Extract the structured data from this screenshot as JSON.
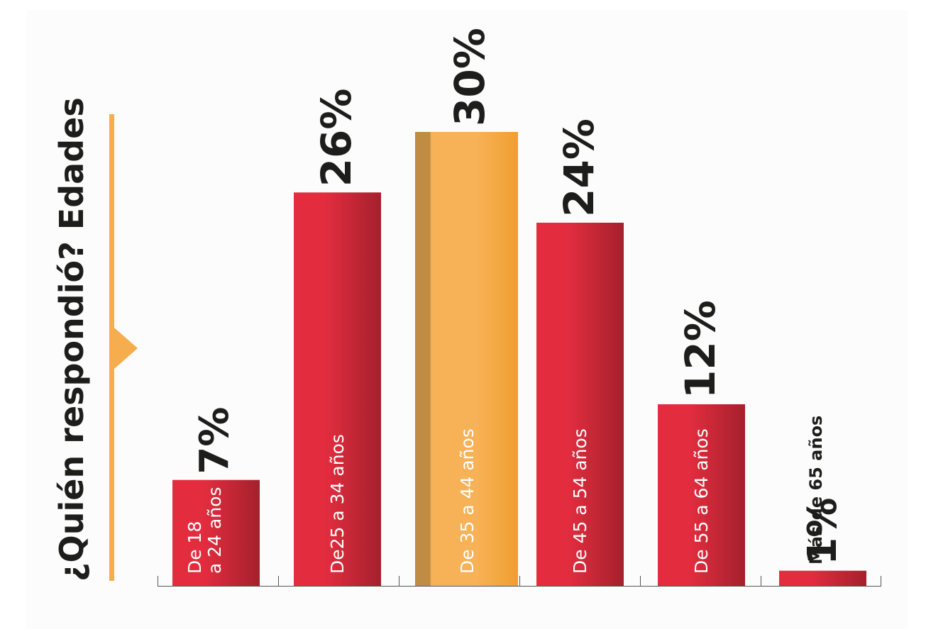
{
  "chart_data": {
    "type": "bar",
    "title": "¿Quién respondió? Edades",
    "categories": [
      "De 18 a 24 años",
      "De25 a 34 años",
      "De 35 a 44 años",
      "De 45 a 54 años",
      "De 55 a 64 años",
      "Más de 65 años"
    ],
    "category_lines": [
      [
        "De 18",
        "a 24 años"
      ],
      [
        "De25 a 34 años"
      ],
      [
        "De 35 a 44 años"
      ],
      [
        "De 45 a 54 años"
      ],
      [
        "De 55 a 64 años"
      ],
      [
        "Más de 65 años"
      ]
    ],
    "values": [
      7,
      26,
      30,
      24,
      12,
      1
    ],
    "value_labels": [
      "7%",
      "26%",
      "30%",
      "24%",
      "12%",
      "1%"
    ],
    "highlight_index": 2,
    "ylim": [
      0,
      30
    ],
    "grid": false,
    "legend": "none",
    "colors": {
      "bar_light": "#e32d3f",
      "bar_dark": "#a5202c",
      "highlight_left": "#c08b42",
      "highlight_mid": "#f7b156",
      "highlight_right": "#f09f2f",
      "accent": "#f5ad4e",
      "value_text": "#1d1d1b",
      "label_text": "#ffffff",
      "label_text_dark": "#1d1d1b",
      "axis": "#555555"
    }
  }
}
